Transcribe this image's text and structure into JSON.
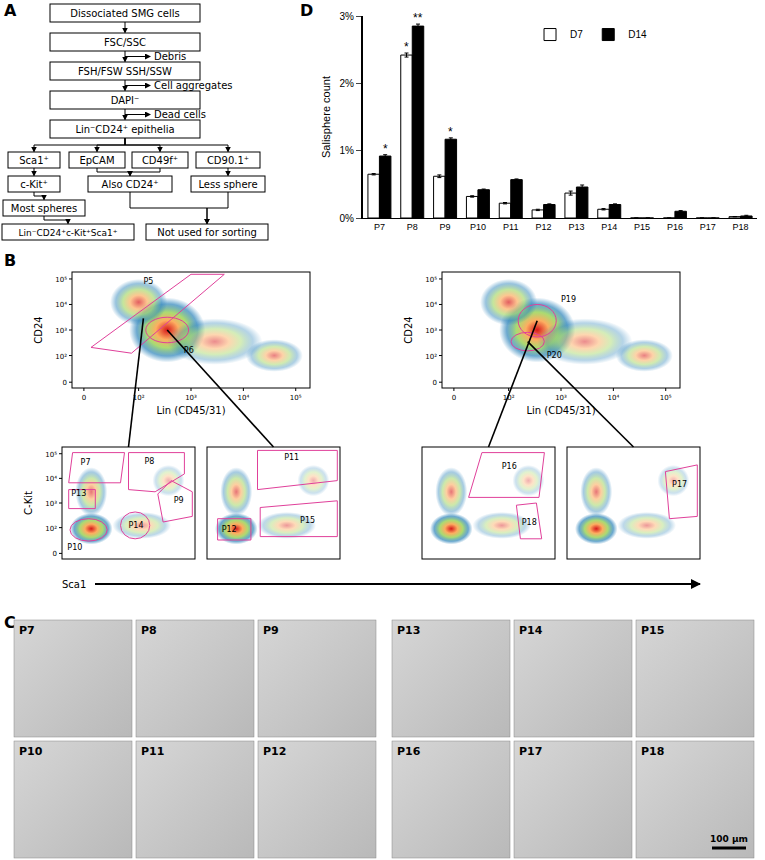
{
  "panel_labels": [
    "A",
    "B",
    "C",
    "D"
  ],
  "flowchart": {
    "boxes": [
      "Dissociated SMG cells",
      "FSC/SSC",
      "FSH/FSW SSH/SSW",
      "DAPI⁻",
      "Lin⁻CD24⁺ epithelia",
      "Sca1⁺",
      "EpCAM",
      "CD49f⁺",
      "CD90.1⁺",
      "c-Kit⁺",
      "Also CD24⁺",
      "Less sphere",
      "Most spheres",
      "Lin⁻CD24⁺c-Kit⁺Sca1⁺",
      "Not used for sorting"
    ],
    "side_labels": [
      "Debris",
      "Cell aggregates",
      "Dead cells"
    ]
  },
  "flow_cytometry": {
    "ticks": [
      "0",
      "10²",
      "10³",
      "10⁴",
      "10⁵"
    ],
    "top_plots": [
      {
        "x_label": "Lin (CD45/31)",
        "y_label": "CD24",
        "gates": [
          "P5",
          "P6"
        ]
      },
      {
        "x_label": "Lin (CD45/31)",
        "y_label": "CD24",
        "gates": [
          "P19",
          "P20"
        ]
      }
    ],
    "bottom_plots": [
      {
        "gates": [
          "P7",
          "P8",
          "P9",
          "P13",
          "P10",
          "P14"
        ]
      },
      {
        "gates": [
          "P11",
          "P12",
          "P15"
        ]
      },
      {
        "gates": [
          "P16",
          "P18"
        ]
      },
      {
        "gates": [
          "P17"
        ]
      }
    ],
    "bottom_y_label": "C-Kit",
    "bottom_x_label": "Sca1"
  },
  "micrographs": {
    "tiles": [
      "P7",
      "P8",
      "P9",
      "P10",
      "P11",
      "P12",
      "P13",
      "P14",
      "P15",
      "P16",
      "P17",
      "P18"
    ],
    "scale_bar": "100 μm"
  },
  "chart_data": {
    "type": "bar",
    "y_label": "Salisphere count",
    "categories": [
      "P7",
      "P8",
      "P9",
      "P10",
      "P11",
      "P12",
      "P13",
      "P14",
      "P15",
      "P16",
      "P17",
      "P18"
    ],
    "series": [
      {
        "name": "D7",
        "color": "#ffffff",
        "values": [
          0.65,
          2.42,
          0.62,
          0.32,
          0.22,
          0.12,
          0.37,
          0.13,
          0,
          0,
          0,
          0.02
        ],
        "errors": [
          0.01,
          0.03,
          0.02,
          0.01,
          0.01,
          0.01,
          0.03,
          0.01,
          0,
          0,
          0,
          0
        ]
      },
      {
        "name": "D14",
        "color": "#000000",
        "values": [
          0.92,
          2.85,
          1.17,
          0.42,
          0.57,
          0.2,
          0.46,
          0.2,
          0,
          0.1,
          0,
          0.03
        ],
        "errors": [
          0.02,
          0.03,
          0.02,
          0.01,
          0.01,
          0.01,
          0.03,
          0.01,
          0,
          0.01,
          0,
          0.01
        ]
      }
    ],
    "annotations": [
      {
        "category": "P7",
        "series": "D14",
        "text": "*"
      },
      {
        "category": "P8",
        "series": "D7",
        "text": "*"
      },
      {
        "category": "P8",
        "series": "D14",
        "text": "**"
      },
      {
        "category": "P9",
        "series": "D14",
        "text": "*"
      }
    ],
    "ylim": [
      0,
      3
    ],
    "yticks": [
      {
        "value": 0,
        "label": "0%"
      },
      {
        "value": 1,
        "label": "1%"
      },
      {
        "value": 2,
        "label": "2%"
      },
      {
        "value": 3,
        "label": "3%"
      }
    ],
    "grid": false,
    "legend": "upper center"
  }
}
